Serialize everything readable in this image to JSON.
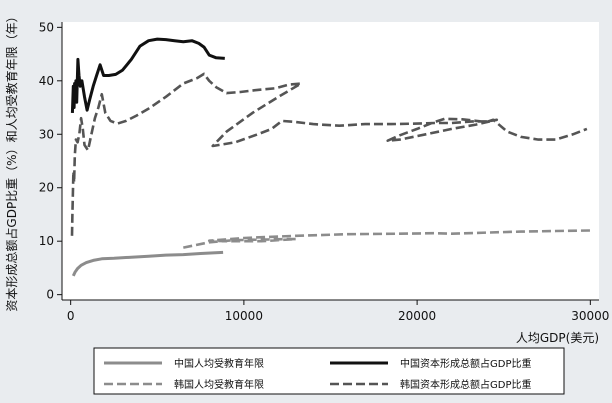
{
  "chart_data": {
    "type": "line",
    "xlabel": "人均GDP(美元)",
    "ylabel": "资本形成总额占GDP比重（%）和人均受教育年限（年）",
    "xlim": [
      -500,
      30500
    ],
    "ylim": [
      -1,
      51
    ],
    "x_ticks": [
      0,
      10000,
      20000,
      30000
    ],
    "x_tick_labels": [
      "0",
      "10000",
      "20000",
      "30000"
    ],
    "y_ticks": [
      0,
      10,
      20,
      30,
      40,
      50
    ],
    "y_tick_labels": [
      "0",
      "10",
      "20",
      "30",
      "40",
      "50"
    ],
    "grid": false,
    "legend_position": "bottom",
    "series": [
      {
        "name": "中国人均受教育年限",
        "color": "#8c8c8c",
        "style": "solid",
        "points": [
          [
            150,
            3.5
          ],
          [
            250,
            4.2
          ],
          [
            400,
            4.9
          ],
          [
            600,
            5.5
          ],
          [
            900,
            6.0
          ],
          [
            1300,
            6.4
          ],
          [
            1800,
            6.7
          ],
          [
            2500,
            6.8
          ],
          [
            3500,
            7.0
          ],
          [
            4500,
            7.2
          ],
          [
            5500,
            7.4
          ],
          [
            6500,
            7.5
          ],
          [
            7500,
            7.7
          ],
          [
            8800,
            7.9
          ]
        ]
      },
      {
        "name": "中国资本形成总额占GDP比重",
        "color": "#111111",
        "style": "solid",
        "points": [
          [
            100,
            34
          ],
          [
            150,
            39
          ],
          [
            200,
            35
          ],
          [
            230,
            39.5
          ],
          [
            260,
            36
          ],
          [
            300,
            40
          ],
          [
            350,
            36
          ],
          [
            420,
            44
          ],
          [
            480,
            41
          ],
          [
            550,
            39
          ],
          [
            650,
            40
          ],
          [
            800,
            37
          ],
          [
            950,
            34.5
          ],
          [
            1100,
            36.5
          ],
          [
            1300,
            39
          ],
          [
            1500,
            41
          ],
          [
            1700,
            43
          ],
          [
            1900,
            41
          ],
          [
            2200,
            41
          ],
          [
            2600,
            41.2
          ],
          [
            3000,
            42
          ],
          [
            3500,
            44
          ],
          [
            4000,
            46.5
          ],
          [
            4500,
            47.5
          ],
          [
            5000,
            47.8
          ],
          [
            5500,
            47.7
          ],
          [
            6000,
            47.5
          ],
          [
            6500,
            47.3
          ],
          [
            7000,
            47.5
          ],
          [
            7400,
            47.0
          ],
          [
            7700,
            46.3
          ],
          [
            8000,
            44.8
          ],
          [
            8400,
            44.3
          ],
          [
            8900,
            44.2
          ]
        ]
      },
      {
        "name": "韩国人均受教育年限",
        "color": "#8c8c8c",
        "style": "dashed",
        "points": [
          [
            6500,
            8.8
          ],
          [
            8000,
            9.8
          ],
          [
            9500,
            10.2
          ],
          [
            11000,
            10.3
          ],
          [
            12500,
            10.4
          ],
          [
            13000,
            10.4
          ],
          [
            11000,
            10.0
          ],
          [
            9000,
            10.0
          ],
          [
            8000,
            10.1
          ],
          [
            10000,
            10.6
          ],
          [
            13000,
            11.0
          ],
          [
            16000,
            11.3
          ],
          [
            19000,
            11.4
          ],
          [
            21000,
            11.5
          ],
          [
            22000,
            11.4
          ],
          [
            24000,
            11.6
          ],
          [
            26000,
            11.8
          ],
          [
            28000,
            11.9
          ],
          [
            30000,
            12.0
          ]
        ]
      },
      {
        "name": "韩国资本形成总额占GDP比重",
        "color": "#555555",
        "style": "dashed",
        "points": [
          [
            80,
            11
          ],
          [
            100,
            15
          ],
          [
            130,
            19
          ],
          [
            160,
            23
          ],
          [
            200,
            21
          ],
          [
            240,
            26
          ],
          [
            300,
            29
          ],
          [
            400,
            28.5
          ],
          [
            500,
            30
          ],
          [
            600,
            33
          ],
          [
            700,
            31
          ],
          [
            800,
            28
          ],
          [
            1000,
            27
          ],
          [
            1200,
            30
          ],
          [
            1400,
            33
          ],
          [
            1600,
            35
          ],
          [
            1800,
            37.5
          ],
          [
            2000,
            34
          ],
          [
            2300,
            32.5
          ],
          [
            2700,
            32
          ],
          [
            3200,
            32.5
          ],
          [
            3800,
            33.5
          ],
          [
            4500,
            34.8
          ],
          [
            5500,
            37
          ],
          [
            6500,
            39.5
          ],
          [
            7300,
            40.5
          ],
          [
            7700,
            41.3
          ],
          [
            8000,
            40
          ],
          [
            8400,
            38.8
          ],
          [
            9000,
            37.7
          ],
          [
            9800,
            37.9
          ],
          [
            10800,
            38.3
          ],
          [
            11800,
            38.6
          ],
          [
            12600,
            39.3
          ],
          [
            13300,
            39.5
          ],
          [
            12000,
            37
          ],
          [
            10500,
            34
          ],
          [
            9000,
            30.5
          ],
          [
            8200,
            27.8
          ],
          [
            9500,
            28.5
          ],
          [
            10800,
            30
          ],
          [
            11600,
            31
          ],
          [
            12200,
            32.5
          ],
          [
            13000,
            32.3
          ],
          [
            14000,
            31.9
          ],
          [
            15500,
            31.6
          ],
          [
            17000,
            31.9
          ],
          [
            18500,
            31.9
          ],
          [
            20000,
            32.0
          ],
          [
            21000,
            32.1
          ],
          [
            22000,
            32.1
          ],
          [
            23200,
            32.4
          ],
          [
            24100,
            32.4
          ],
          [
            24600,
            32.7
          ],
          [
            23400,
            31.8
          ],
          [
            22000,
            31.0
          ],
          [
            20500,
            30.0
          ],
          [
            19000,
            29.0
          ],
          [
            18300,
            28.8
          ],
          [
            19000,
            29.8
          ],
          [
            20000,
            31.0
          ],
          [
            21000,
            32.3
          ],
          [
            21600,
            32.9
          ],
          [
            22600,
            32.8
          ],
          [
            24000,
            32.3
          ],
          [
            24400,
            32.7
          ],
          [
            25200,
            30.5
          ],
          [
            26000,
            29.5
          ],
          [
            27000,
            29.0
          ],
          [
            28000,
            29.0
          ],
          [
            29000,
            30.0
          ],
          [
            29800,
            31.0
          ]
        ]
      }
    ]
  }
}
